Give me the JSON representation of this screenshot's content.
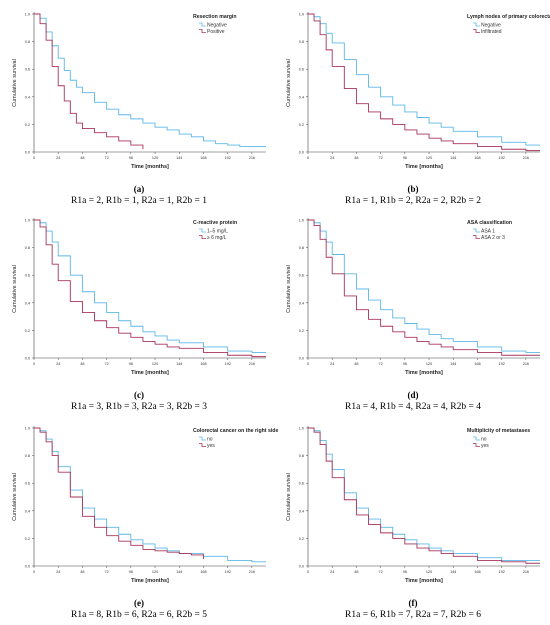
{
  "colors": {
    "series_a": "#5bb8e8",
    "series_b": "#a8345a"
  },
  "chart_data": [
    {
      "type": "line",
      "panel_label": "(a)",
      "caption": "R1a = 2, R1b = 1, R2a = 1, R2b = 1",
      "legend_title": "Resection margin",
      "legend_position": "top-right",
      "xlabel": "Time [months]",
      "ylabel": "Cumulative survival",
      "xticks": [
        0,
        24,
        48,
        72,
        96,
        120,
        144,
        168,
        192,
        216
      ],
      "yticks": [
        "0.0",
        "0.2",
        "0.4",
        "0.6",
        "0.8",
        "1.0"
      ],
      "xlim": [
        0,
        230
      ],
      "ylim": [
        0,
        1
      ],
      "grid": false,
      "series": [
        {
          "name": "Negative",
          "color": "#5bb8e8",
          "x": [
            0,
            6,
            12,
            18,
            24,
            30,
            36,
            42,
            48,
            60,
            72,
            84,
            96,
            108,
            120,
            132,
            144,
            156,
            168,
            180,
            192,
            204,
            216,
            230
          ],
          "y": [
            1.0,
            0.97,
            0.87,
            0.77,
            0.68,
            0.59,
            0.52,
            0.47,
            0.43,
            0.36,
            0.31,
            0.27,
            0.24,
            0.21,
            0.18,
            0.16,
            0.13,
            0.11,
            0.08,
            0.06,
            0.05,
            0.04,
            0.04,
            0.04
          ]
        },
        {
          "name": "Positive",
          "color": "#a8345a",
          "x": [
            0,
            6,
            12,
            18,
            24,
            30,
            36,
            42,
            48,
            60,
            72,
            84,
            96,
            108
          ],
          "y": [
            1.0,
            0.93,
            0.81,
            0.62,
            0.48,
            0.37,
            0.28,
            0.21,
            0.17,
            0.14,
            0.11,
            0.08,
            0.05,
            0.02
          ]
        }
      ]
    },
    {
      "type": "line",
      "panel_label": "(b)",
      "caption": "R1a = 1, R1b = 2, R2a = 2, R2b = 2",
      "legend_title": "Lymph nodes of primary colorectal cancer",
      "legend_position": "top-right",
      "xlabel": "Time [months]",
      "ylabel": "Cumulative survival",
      "xticks": [
        0,
        24,
        48,
        72,
        96,
        120,
        144,
        168,
        192,
        216
      ],
      "yticks": [
        "0.0",
        "0.2",
        "0.4",
        "0.6",
        "0.8",
        "1.0"
      ],
      "xlim": [
        0,
        230
      ],
      "ylim": [
        0,
        1
      ],
      "grid": false,
      "series": [
        {
          "name": "Negative",
          "color": "#5bb8e8",
          "x": [
            0,
            6,
            12,
            18,
            24,
            36,
            48,
            60,
            72,
            84,
            96,
            108,
            120,
            132,
            144,
            168,
            192,
            216,
            230
          ],
          "y": [
            1.0,
            0.98,
            0.93,
            0.86,
            0.79,
            0.67,
            0.56,
            0.47,
            0.4,
            0.34,
            0.29,
            0.25,
            0.21,
            0.18,
            0.15,
            0.11,
            0.07,
            0.05,
            0.05
          ]
        },
        {
          "name": "Infiltrated",
          "color": "#a8345a",
          "x": [
            0,
            6,
            12,
            18,
            24,
            36,
            48,
            60,
            72,
            84,
            96,
            108,
            120,
            132,
            144,
            168,
            192,
            216,
            230
          ],
          "y": [
            1.0,
            0.95,
            0.85,
            0.74,
            0.62,
            0.46,
            0.35,
            0.29,
            0.24,
            0.2,
            0.16,
            0.13,
            0.1,
            0.08,
            0.06,
            0.04,
            0.02,
            0.01,
            0.01
          ]
        }
      ]
    },
    {
      "type": "line",
      "panel_label": "(c)",
      "caption": "R1a = 3, R1b = 3, R2a = 3, R2b = 3",
      "legend_title": "C-reactive protein",
      "legend_position": "top-right",
      "xlabel": "Time [months]",
      "ylabel": "Cumulative survival",
      "xticks": [
        0,
        24,
        48,
        72,
        96,
        120,
        144,
        168,
        192,
        216
      ],
      "yticks": [
        "0.0",
        "0.2",
        "0.4",
        "0.6",
        "0.8",
        "1.0"
      ],
      "xlim": [
        0,
        230
      ],
      "ylim": [
        0,
        1
      ],
      "grid": false,
      "series": [
        {
          "name": "1–5 mg/L",
          "color": "#5bb8e8",
          "x": [
            0,
            6,
            12,
            18,
            24,
            36,
            48,
            60,
            72,
            84,
            96,
            108,
            120,
            132,
            144,
            168,
            192,
            216,
            230
          ],
          "y": [
            1.0,
            0.98,
            0.92,
            0.84,
            0.74,
            0.6,
            0.48,
            0.4,
            0.33,
            0.27,
            0.23,
            0.19,
            0.16,
            0.13,
            0.11,
            0.08,
            0.05,
            0.04,
            0.04
          ]
        },
        {
          "name": "≥ 6 mg/L",
          "color": "#a8345a",
          "x": [
            0,
            6,
            12,
            18,
            24,
            36,
            48,
            60,
            72,
            84,
            96,
            108,
            120,
            132,
            144,
            168,
            192,
            216,
            230
          ],
          "y": [
            1.0,
            0.95,
            0.82,
            0.68,
            0.56,
            0.41,
            0.33,
            0.27,
            0.22,
            0.18,
            0.15,
            0.12,
            0.1,
            0.08,
            0.07,
            0.04,
            0.02,
            0.01,
            0.01
          ]
        }
      ]
    },
    {
      "type": "line",
      "panel_label": "(d)",
      "caption": "R1a = 4, R1b = 4, R2a = 4, R2b = 4",
      "legend_title": "ASA classification",
      "legend_position": "top-right",
      "xlabel": "Time [months]",
      "ylabel": "Cumulative survival",
      "xticks": [
        0,
        24,
        48,
        72,
        96,
        120,
        144,
        168,
        192,
        216
      ],
      "yticks": [
        "0.0",
        "0.2",
        "0.4",
        "0.6",
        "0.8",
        "1.0"
      ],
      "xlim": [
        0,
        230
      ],
      "ylim": [
        0,
        1
      ],
      "grid": false,
      "series": [
        {
          "name": "ASA 1",
          "color": "#5bb8e8",
          "x": [
            0,
            6,
            12,
            18,
            24,
            36,
            48,
            60,
            72,
            84,
            96,
            108,
            120,
            132,
            144,
            168,
            192,
            216,
            230
          ],
          "y": [
            1.0,
            0.98,
            0.92,
            0.84,
            0.75,
            0.61,
            0.5,
            0.42,
            0.35,
            0.29,
            0.25,
            0.21,
            0.17,
            0.14,
            0.12,
            0.08,
            0.05,
            0.04,
            0.04
          ]
        },
        {
          "name": "ASA 2 or 3",
          "color": "#a8345a",
          "x": [
            0,
            6,
            12,
            18,
            24,
            36,
            48,
            60,
            72,
            84,
            96,
            108,
            120,
            132,
            144,
            168,
            192,
            216,
            230
          ],
          "y": [
            1.0,
            0.96,
            0.86,
            0.73,
            0.61,
            0.45,
            0.35,
            0.28,
            0.23,
            0.19,
            0.15,
            0.12,
            0.1,
            0.08,
            0.06,
            0.04,
            0.02,
            0.02,
            0.02
          ]
        }
      ]
    },
    {
      "type": "line",
      "panel_label": "(e)",
      "caption": "R1a = 8, R1b = 6, R2a = 6, R2b = 5",
      "legend_title": "Colorectal cancer on the right side",
      "legend_position": "top-right",
      "xlabel": "Time [months]",
      "ylabel": "Cumulative survival",
      "xticks": [
        0,
        24,
        48,
        72,
        96,
        120,
        144,
        168,
        192,
        216
      ],
      "yticks": [
        "0.0",
        "0.2",
        "0.4",
        "0.6",
        "0.8",
        "1.0"
      ],
      "xlim": [
        0,
        230
      ],
      "ylim": [
        0,
        1
      ],
      "grid": false,
      "series": [
        {
          "name": "no",
          "color": "#5bb8e8",
          "x": [
            0,
            6,
            12,
            18,
            24,
            36,
            48,
            60,
            72,
            84,
            96,
            108,
            120,
            132,
            144,
            168,
            192,
            216,
            230
          ],
          "y": [
            1.0,
            0.98,
            0.92,
            0.83,
            0.72,
            0.55,
            0.42,
            0.34,
            0.28,
            0.23,
            0.19,
            0.16,
            0.13,
            0.11,
            0.09,
            0.07,
            0.04,
            0.03,
            0.03
          ]
        },
        {
          "name": "yes",
          "color": "#a8345a",
          "x": [
            0,
            6,
            12,
            18,
            24,
            36,
            48,
            60,
            72,
            84,
            96,
            108,
            120,
            132,
            144,
            156,
            168
          ],
          "y": [
            1.0,
            0.97,
            0.9,
            0.8,
            0.68,
            0.5,
            0.36,
            0.28,
            0.22,
            0.18,
            0.15,
            0.12,
            0.11,
            0.1,
            0.09,
            0.08,
            0.05
          ]
        }
      ]
    },
    {
      "type": "line",
      "panel_label": "(f)",
      "caption": "R1a = 6, R1b = 7, R2a = 7, R2b = 6",
      "legend_title": "Multiplicity of metastases",
      "legend_position": "top-right",
      "xlabel": "Time [months]",
      "ylabel": "Cumulative survival",
      "xticks": [
        0,
        24,
        48,
        72,
        96,
        120,
        144,
        168,
        192,
        216
      ],
      "yticks": [
        "0.0",
        "0.2",
        "0.4",
        "0.6",
        "0.8",
        "1.0"
      ],
      "xlim": [
        0,
        230
      ],
      "ylim": [
        0,
        1
      ],
      "grid": false,
      "series": [
        {
          "name": "no",
          "color": "#5bb8e8",
          "x": [
            0,
            6,
            12,
            18,
            24,
            36,
            48,
            60,
            72,
            84,
            96,
            108,
            120,
            132,
            144,
            168,
            192,
            216,
            230
          ],
          "y": [
            1.0,
            0.98,
            0.91,
            0.81,
            0.7,
            0.53,
            0.42,
            0.34,
            0.28,
            0.23,
            0.19,
            0.16,
            0.13,
            0.11,
            0.09,
            0.06,
            0.04,
            0.04,
            0.04
          ]
        },
        {
          "name": "yes",
          "color": "#a8345a",
          "x": [
            0,
            6,
            12,
            18,
            24,
            36,
            48,
            60,
            72,
            84,
            96,
            108,
            120,
            132,
            144,
            168,
            192,
            216,
            230
          ],
          "y": [
            1.0,
            0.97,
            0.88,
            0.76,
            0.64,
            0.48,
            0.37,
            0.3,
            0.24,
            0.2,
            0.16,
            0.13,
            0.11,
            0.09,
            0.07,
            0.04,
            0.03,
            0.02,
            0.02
          ]
        }
      ]
    }
  ]
}
